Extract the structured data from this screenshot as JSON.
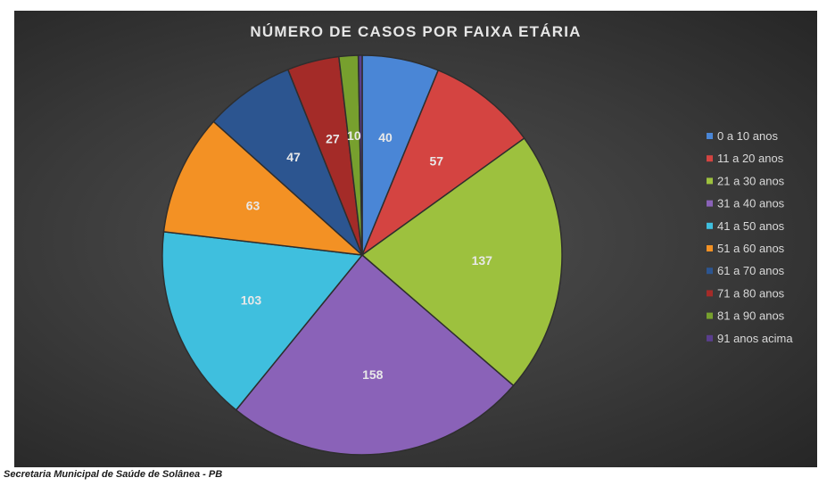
{
  "source_note": "Secretaria Municipal de Saúde de Solânea - PB",
  "chart_data": {
    "type": "pie",
    "title": "NÚMERO DE CASOS POR FAIXA ETÁRIA",
    "categories": [
      "0 a 10 anos",
      "11 a 20 anos",
      "21 a 30 anos",
      "31 a 40 anos",
      "41 a 50 anos",
      "51 a 60 anos",
      "61 a 70 anos",
      "71 a 80 anos",
      "81 a 90 anos",
      "91 anos acima"
    ],
    "values": [
      40,
      57,
      137,
      158,
      103,
      63,
      47,
      27,
      10,
      2
    ],
    "data_labels": [
      "40",
      "57",
      "137",
      "158",
      "103",
      "63",
      "47",
      "27",
      "10",
      ""
    ],
    "colors": [
      "#4a86d6",
      "#d44441",
      "#9dc13e",
      "#8a62b8",
      "#3fbfde",
      "#f39124",
      "#2c5590",
      "#a42b28",
      "#77a02e",
      "#5a3e8e"
    ],
    "legend_position": "right"
  }
}
